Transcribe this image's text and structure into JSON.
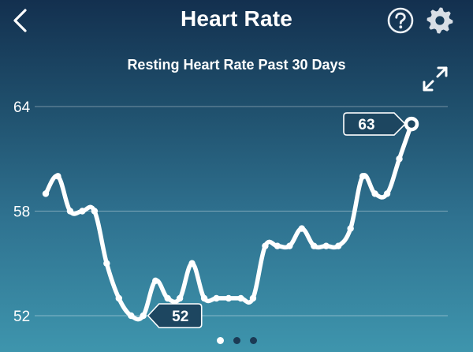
{
  "header": {
    "title": "Heart Rate",
    "back_icon": "chevron-left-icon",
    "help_icon": "question-circle-icon",
    "settings_icon": "gear-icon"
  },
  "colors": {
    "bg_top": "#13304f",
    "bg_bottom": "#3e95ad",
    "line": "#ffffff",
    "callout_bg": "#1d4660",
    "dot_inactive": "#1b3a55"
  },
  "chart_data": {
    "type": "line",
    "title": "Resting Heart Rate Past 30 Days",
    "xlabel": "",
    "ylabel": "",
    "ylim": [
      52,
      64
    ],
    "yticks": [
      "64",
      "58",
      "52"
    ],
    "grid": true,
    "series": [
      {
        "values": [
          59,
          60,
          58,
          58,
          58,
          55,
          53,
          52,
          52,
          54,
          53,
          53,
          55,
          53,
          53,
          53,
          53,
          53,
          56,
          56,
          56,
          57,
          56,
          56,
          56,
          57,
          60,
          59,
          59,
          61,
          63
        ]
      }
    ],
    "annotations": [
      {
        "label": "52",
        "point_index": 8,
        "type": "min"
      },
      {
        "label": "63",
        "point_index": 30,
        "type": "current"
      }
    ]
  },
  "pager": {
    "count": 3,
    "active": 0
  }
}
